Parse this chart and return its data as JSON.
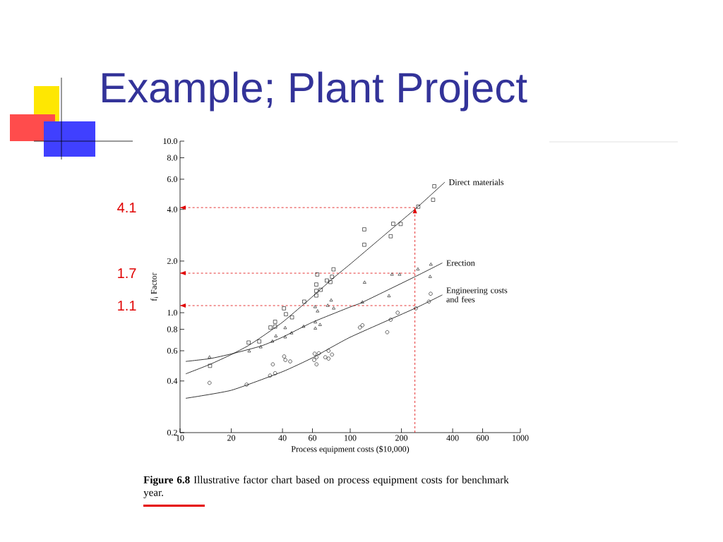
{
  "chart_data": {
    "type": "scatter",
    "title": "Example; Plant Project",
    "xlabel": "Process equipment costs ($10,000)",
    "ylabel": "f$_{i}$ Factor",
    "annotations": [
      "**Figure 6.8** Illustrative factor chart based on process equipment costs for benchmark year."
    ],
    "log": "xy",
    "xlim": [
      10,
      1000
    ],
    "ylim": [
      0.2,
      10
    ],
    "xticks": [
      10,
      20,
      40,
      60,
      100,
      200,
      400,
      600,
      1000
    ],
    "yticks": [
      0.2,
      0.4,
      0.6,
      0.8,
      {
        "value": 1,
        "label": "1.0"
      },
      {
        "value": 2,
        "label": "2.0"
      },
      {
        "value": 4,
        "label": "4.0"
      },
      {
        "value": 6,
        "label": "6.0"
      },
      {
        "value": 8,
        "label": "8.0"
      },
      {
        "value": 10,
        "label": "10.0"
      }
    ],
    "series": [
      {
        "marker": "square",
        "color": "#000000",
        "x": [
          15,
          25.3,
          29.2,
          34,
          36.2,
          36.2,
          40.8,
          41.9,
          45.5,
          53.7,
          64,
          63.2,
          63.2,
          63.2,
          67.1,
          72.9,
          76.5,
          78.2,
          79.8,
          121,
          121,
          179,
          198,
          173,
          251,
          307,
          312
        ],
        "values": [
          0.49,
          0.67,
          0.68,
          0.82,
          0.885,
          0.83,
          1.06,
          0.98,
          0.94,
          1.16,
          1.67,
          1.46,
          1.34,
          1.26,
          1.36,
          1.54,
          1.51,
          1.62,
          1.79,
          3.06,
          2.49,
          3.3,
          3.29,
          2.79,
          4.15,
          4.55,
          5.46
        ]
      },
      {
        "marker": "triangle",
        "color": "#000000",
        "x": [
          14.9,
          25.5,
          29.8,
          34.9,
          36.6,
          41.5,
          41.5,
          45.2,
          53.2,
          62.4,
          62.4,
          66.5,
          62.2,
          64.3,
          73.8,
          77.3,
          80,
          121.5,
          118,
          176,
          195,
          169,
          250,
          295,
          298
        ],
        "values": [
          0.55,
          0.596,
          0.63,
          0.68,
          0.73,
          0.815,
          0.72,
          0.76,
          0.83,
          0.88,
          0.81,
          0.85,
          1.08,
          1.02,
          1.1,
          1.18,
          1.06,
          1.5,
          1.15,
          1.67,
          1.67,
          1.25,
          1.79,
          1.62,
          1.91
        ]
      },
      {
        "marker": "circle",
        "color": "#000000",
        "x": [
          14.9,
          24.6,
          35.1,
          33.8,
          36.2,
          40.9,
          41.6,
          44.4,
          61.8,
          61.4,
          63.4,
          63.4,
          65.4,
          71.4,
          74.6,
          74.6,
          78.2,
          114,
          118,
          165,
          173,
          190,
          243,
          290,
          297
        ],
        "values": [
          0.39,
          0.381,
          0.5,
          0.43,
          0.444,
          0.556,
          0.53,
          0.52,
          0.577,
          0.53,
          0.5,
          0.55,
          0.58,
          0.55,
          0.54,
          0.6,
          0.57,
          0.82,
          0.845,
          0.77,
          0.91,
          1.0,
          1.06,
          1.16,
          1.29
        ]
      },
      {
        "type": "line",
        "marker": "none",
        "name": "Direct materials",
        "color": "#000000",
        "x": [
          10.8,
          15,
          20,
          25,
          30,
          40,
          55,
          80,
          100,
          150,
          250,
          360
        ],
        "values": [
          0.44,
          0.5,
          0.57,
          0.64,
          0.72,
          0.88,
          1.15,
          1.6,
          1.92,
          2.7,
          4.15,
          5.77
        ]
      },
      {
        "type": "line",
        "marker": "none",
        "name": "Erection",
        "color": "#000000",
        "x": [
          10.8,
          15,
          20,
          30,
          40,
          60,
          100,
          118,
          240,
          348
        ],
        "values": [
          0.52,
          0.54,
          0.575,
          0.64,
          0.72,
          0.88,
          1.08,
          1.15,
          1.62,
          1.95
        ]
      },
      {
        "type": "line",
        "marker": "none",
        "name": "Engineering costs and fees",
        "color": "#000000",
        "x": [
          10.8,
          20,
          40,
          60,
          100,
          240,
          348
        ],
        "values": [
          0.317,
          0.353,
          0.453,
          0.546,
          0.72,
          1.06,
          1.27
        ]
      }
    ],
    "ref_lines": [
      {
        "axis": "y",
        "value": 4.1,
        "label": "4.1",
        "color": "#e00000",
        "line_style": "dashed"
      },
      {
        "axis": "y",
        "value": 1.7,
        "label": "1.7",
        "color": "#e00000",
        "line_style": "dashed"
      },
      {
        "axis": "y",
        "value": 1.1,
        "label": "1.1",
        "color": "#e00000",
        "line_style": "dashed"
      },
      {
        "axis": "x",
        "value": 240,
        "color": "#e00000",
        "line_style": "dashed"
      }
    ]
  }
}
